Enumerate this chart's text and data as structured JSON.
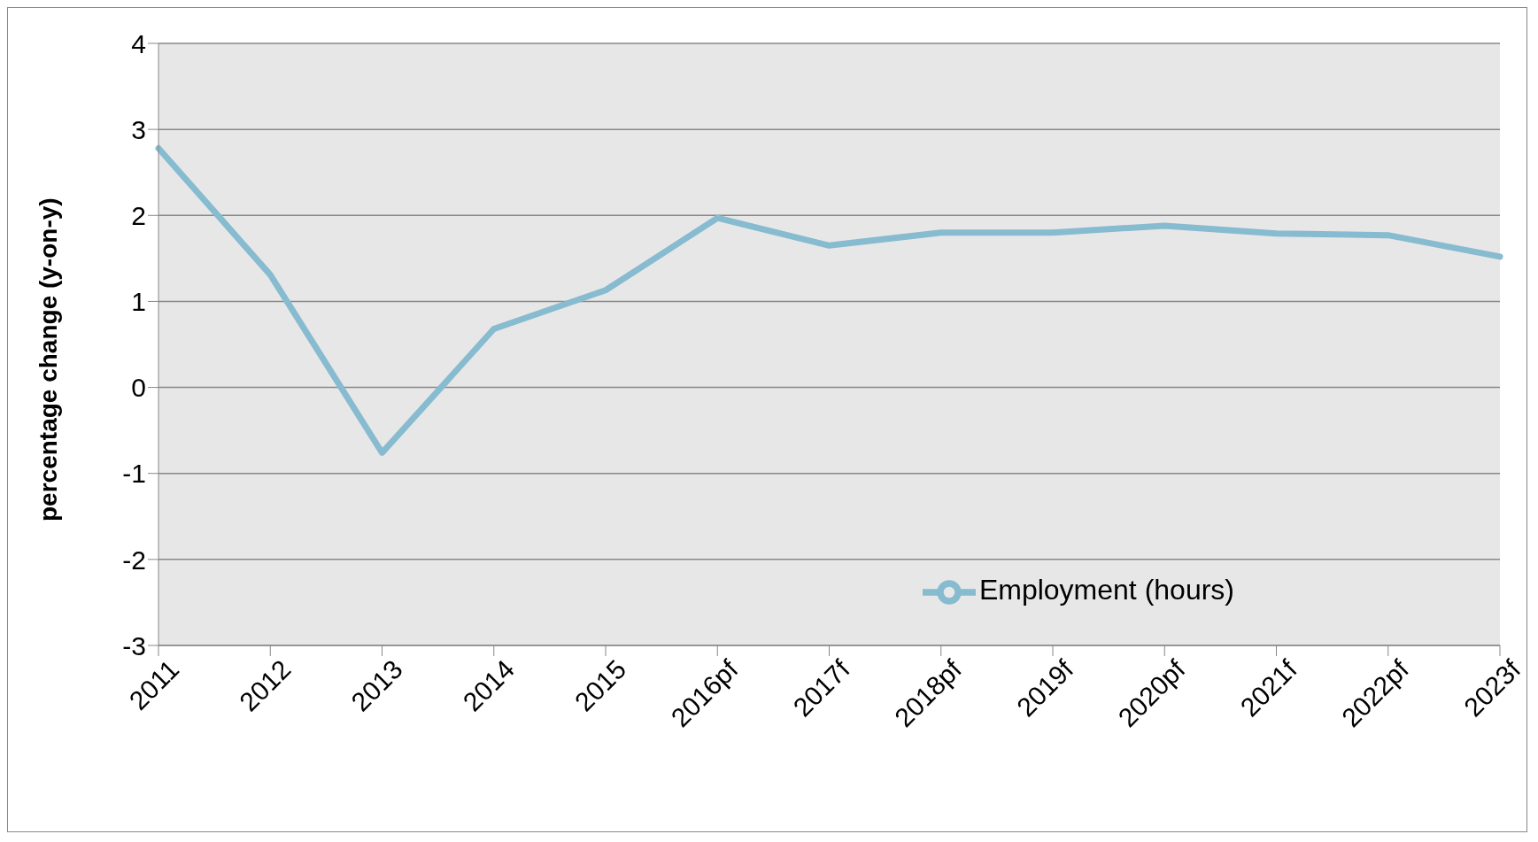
{
  "chart_data": {
    "type": "line",
    "ylabel": "percentage change (y-on-y)",
    "categories": [
      "2011",
      "2012",
      "2013",
      "2014",
      "2015",
      "2016pf",
      "2017f",
      "2018pf",
      "2019f",
      "2020pf",
      "2021f",
      "2022pf",
      "2023f"
    ],
    "series": [
      {
        "name": "Employment (hours)",
        "color": "#87bbd0",
        "values": [
          2.78,
          1.31,
          -0.76,
          0.68,
          1.13,
          1.97,
          1.65,
          1.8,
          1.8,
          1.88,
          1.79,
          1.77,
          1.52
        ]
      }
    ],
    "ylim": [
      -3,
      4
    ],
    "yticks": [
      -3,
      -2,
      -1,
      0,
      1,
      2,
      3,
      4
    ],
    "grid": "y",
    "legend": "bottom right",
    "marker": "none",
    "line_style": "solid"
  }
}
